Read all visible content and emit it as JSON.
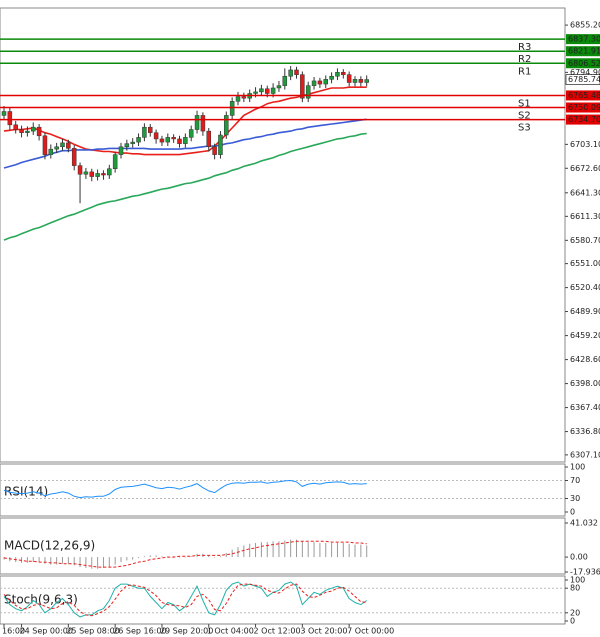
{
  "chart_data": [
    {
      "type": "candlestick",
      "categories": [
        "16:00",
        null,
        null,
        "24 Sep 00:00",
        null,
        null,
        null,
        null,
        null,
        null,
        null,
        "25 Sep 08:00",
        null,
        null,
        null,
        null,
        null,
        null,
        null,
        "26 Sep 16:00",
        null,
        null,
        null,
        null,
        null,
        null,
        null,
        "29 Sep 20:00",
        null,
        null,
        null,
        null,
        null,
        null,
        null,
        "1 Oct 04:00",
        null,
        null,
        null,
        null,
        null,
        null,
        null,
        "2 Oct 12:00",
        null,
        null,
        null,
        null,
        null,
        null,
        null,
        "3 Oct 20:00",
        null,
        null,
        null,
        null,
        null,
        null,
        null,
        "7 Oct 00:00",
        null,
        null,
        null
      ],
      "open": [
        6740,
        6745,
        6728,
        6722,
        6718,
        6720,
        6725,
        6714,
        6690,
        6697,
        6700,
        6705,
        6698,
        6676,
        6665,
        6668,
        6662,
        6666,
        6664,
        6672,
        6690,
        6700,
        6704,
        6706,
        6712,
        6725,
        6718,
        6710,
        6706,
        6712,
        6710,
        6704,
        6712,
        6722,
        6740,
        6720,
        6700,
        6690,
        6715,
        6740,
        6758,
        6764,
        6762,
        6768,
        6770,
        6774,
        6768,
        6775,
        6778,
        6790,
        6798,
        6792,
        6762,
        6778,
        6784,
        6780,
        6786,
        6790,
        6795,
        6792,
        6782,
        6786,
        6782
      ],
      "high": [
        6752,
        6750,
        6733,
        6727,
        6726,
        6731,
        6729,
        6718,
        6703,
        6705,
        6710,
        6709,
        6702,
        6680,
        6673,
        6672,
        6671,
        6670,
        6677,
        6694,
        6705,
        6709,
        6711,
        6717,
        6730,
        6729,
        6722,
        6714,
        6717,
        6716,
        6714,
        6717,
        6727,
        6746,
        6744,
        6724,
        6704,
        6720,
        6745,
        6763,
        6770,
        6769,
        6773,
        6776,
        6779,
        6778,
        6781,
        6784,
        6800,
        6803,
        6802,
        6796,
        6783,
        6789,
        6788,
        6791,
        6795,
        6800,
        6799,
        6796,
        6790,
        6790,
        6791
      ],
      "low": [
        6735,
        6722,
        6717,
        6712,
        6713,
        6715,
        6708,
        6684,
        6685,
        6692,
        6695,
        6693,
        6670,
        6628,
        6659,
        6656,
        6657,
        6658,
        6659,
        6667,
        6685,
        6695,
        6699,
        6701,
        6707,
        6713,
        6704,
        6701,
        6701,
        6705,
        6699,
        6699,
        6707,
        6717,
        6714,
        6694,
        6684,
        6685,
        6710,
        6735,
        6753,
        6757,
        6757,
        6763,
        6765,
        6763,
        6763,
        6770,
        6773,
        6785,
        6787,
        6757,
        6757,
        6773,
        6775,
        6775,
        6781,
        6785,
        6787,
        6777,
        6777,
        6777,
        6777
      ],
      "close": [
        6745,
        6728,
        6722,
        6718,
        6720,
        6725,
        6714,
        6690,
        6697,
        6700,
        6705,
        6698,
        6676,
        6665,
        6668,
        6662,
        6666,
        6664,
        6672,
        6690,
        6700,
        6704,
        6706,
        6712,
        6725,
        6718,
        6710,
        6706,
        6712,
        6710,
        6704,
        6712,
        6722,
        6740,
        6720,
        6700,
        6690,
        6715,
        6740,
        6758,
        6764,
        6762,
        6768,
        6770,
        6774,
        6768,
        6775,
        6778,
        6790,
        6798,
        6792,
        6762,
        6778,
        6784,
        6780,
        6786,
        6790,
        6795,
        6792,
        6782,
        6786,
        6782,
        6785.74
      ],
      "up_color": "#1f9a3c",
      "down_color": "#e01b1b",
      "current_price": 6785.74,
      "series": [
        {
          "color": "#e8201c",
          "values": [
            6720,
            6721,
            6722,
            6722,
            6723,
            6724,
            6721,
            6718,
            6716,
            6713,
            6710,
            6707,
            6703,
            6700,
            6697,
            6696,
            6695,
            6694,
            6694,
            6693,
            6692,
            6692,
            6691,
            6691,
            6690,
            6690,
            6690,
            6690,
            6690,
            6690,
            6690,
            6691,
            6692,
            6693,
            6694,
            6695,
            6701,
            6708,
            6716,
            6724,
            6732,
            6740,
            6744,
            6748,
            6751,
            6755,
            6757,
            6758,
            6760,
            6762,
            6763,
            6765,
            6767,
            6769,
            6771,
            6773,
            6775,
            6775,
            6775,
            6776,
            6776,
            6776,
            6776
          ]
        },
        {
          "color": "#3a5bd6",
          "values": [
            6673,
            6675,
            6677,
            6680,
            6682,
            6684,
            6686,
            6688,
            6691,
            6693,
            6695,
            6695,
            6696,
            6696,
            6696,
            6696,
            6697,
            6697,
            6698,
            6698,
            6698,
            6698,
            6698,
            6698,
            6698,
            6697,
            6697,
            6697,
            6697,
            6697,
            6697,
            6698,
            6698,
            6699,
            6700,
            6701,
            6701,
            6702,
            6704,
            6705,
            6707,
            6709,
            6710,
            6712,
            6713,
            6715,
            6716,
            6718,
            6719,
            6720,
            6722,
            6723,
            6725,
            6726,
            6727,
            6728,
            6729,
            6730,
            6731,
            6732,
            6733,
            6734,
            6735
          ]
        },
        {
          "color": "#2aa85a",
          "values": [
            6581,
            6584,
            6586,
            6589,
            6592,
            6595,
            6597,
            6600,
            6603,
            6606,
            6609,
            6612,
            6614,
            6617,
            6620,
            6623,
            6626,
            6628,
            6630,
            6631,
            6633,
            6635,
            6637,
            6638,
            6640,
            6642,
            6644,
            6646,
            6647,
            6649,
            6651,
            6653,
            6654,
            6656,
            6658,
            6660,
            6663,
            6665,
            6667,
            6670,
            6672,
            6675,
            6677,
            6679,
            6682,
            6684,
            6686,
            6689,
            6691,
            6694,
            6696,
            6698,
            6700,
            6702,
            6704,
            6706,
            6708,
            6710,
            6711,
            6713,
            6714,
            6716,
            6717
          ]
        }
      ],
      "levels": [
        {
          "name": "R3",
          "value": 6837.3,
          "label": "6837.30",
          "color": "#0a8a0a"
        },
        {
          "name": "R2",
          "value": 6821.91,
          "label": "6821.91",
          "color": "#0a8a0a"
        },
        {
          "name": "R1",
          "value": 6806.52,
          "label": "6806.52",
          "color": "#0a8a0a"
        },
        {
          "name": "S1",
          "value": 6765.48,
          "label": "6765.48",
          "color": "#e00000"
        },
        {
          "name": "S2",
          "value": 6750.09,
          "label": "6750.09",
          "color": "#e00000"
        },
        {
          "name": "S3",
          "value": 6734.7,
          "label": "6734.70",
          "color": "#e00000"
        }
      ],
      "ylim": [
        6298,
        6877
      ],
      "yticks": [
        {
          "value": 6855.2,
          "label": "6855.20"
        },
        {
          "value": 6794.9,
          "label": "6794.90"
        },
        {
          "value": 6703.1,
          "label": "6703.10"
        },
        {
          "value": 6672.6,
          "label": "6672.60"
        },
        {
          "value": 6641.3,
          "label": "6641.30"
        },
        {
          "value": 6611.3,
          "label": "6611.30"
        },
        {
          "value": 6580.7,
          "label": "6580.70"
        },
        {
          "value": 6551,
          "label": "6551.00"
        },
        {
          "value": 6520.4,
          "label": "6520.40"
        },
        {
          "value": 6489.9,
          "label": "6489.90"
        },
        {
          "value": 6459.2,
          "label": "6459.20"
        },
        {
          "value": 6428.6,
          "label": "6428.60"
        },
        {
          "value": 6398,
          "label": "6398.00"
        },
        {
          "value": 6367.4,
          "label": "6367.40"
        },
        {
          "value": 6336.8,
          "label": "6336.80"
        },
        {
          "value": 6307.1,
          "label": "6307.10"
        }
      ]
    },
    {
      "type": "line",
      "title": "RSI(14)",
      "series": [
        {
          "color": "#1e90ff",
          "values": [
            48,
            44,
            42,
            41,
            42,
            45,
            42,
            36,
            40,
            42,
            45,
            42,
            35,
            32,
            34,
            33,
            35,
            35,
            40,
            50,
            55,
            56,
            57,
            59,
            62,
            58,
            54,
            52,
            55,
            54,
            51,
            55,
            58,
            63,
            54,
            47,
            43,
            52,
            60,
            64,
            65,
            64,
            66,
            66,
            67,
            64,
            66,
            67,
            69,
            70,
            67,
            57,
            62,
            64,
            62,
            65,
            66,
            67,
            66,
            62,
            63,
            62,
            63
          ]
        }
      ],
      "ylim": [
        0,
        100
      ],
      "yticks": [
        100,
        70,
        30,
        0
      ]
    },
    {
      "type": "macd",
      "title": "MACD(12,26,9)",
      "histogram": {
        "color": "#9a9a9a",
        "values": [
          -3,
          -5,
          -6,
          -7,
          -7,
          -6,
          -6,
          -8,
          -9,
          -9,
          -8,
          -8,
          -10,
          -12,
          -13,
          -14,
          -14,
          -13,
          -12,
          -9,
          -6,
          -4,
          -3,
          -1,
          1,
          2,
          2,
          1,
          1,
          1,
          0,
          0,
          1,
          4,
          4,
          2,
          0,
          1,
          5,
          9,
          12,
          14,
          16,
          17,
          18,
          18,
          19,
          19,
          20,
          21,
          21,
          19,
          18,
          18,
          17,
          17,
          17,
          17,
          17,
          16,
          15,
          15,
          14
        ]
      },
      "signal": {
        "color": "#e8201c",
        "dashed": true,
        "values": [
          -1,
          -2,
          -3,
          -4,
          -5,
          -5,
          -6,
          -6,
          -7,
          -7,
          -8,
          -8,
          -8,
          -9,
          -10,
          -11,
          -12,
          -12,
          -12,
          -12,
          -11,
          -10,
          -8,
          -6,
          -5,
          -3,
          -2,
          -1,
          0,
          0,
          1,
          1,
          1,
          2,
          2,
          2,
          2,
          2,
          3,
          4,
          6,
          8,
          10,
          11,
          13,
          14,
          15,
          16,
          17,
          18,
          19,
          19,
          19,
          19,
          19,
          19,
          18,
          18,
          18,
          18,
          17,
          17,
          16
        ]
      },
      "ylim": [
        -17.936,
        41.032
      ],
      "yticks": [
        41.032,
        {
          "value": 0,
          "label": "0.00"
        },
        -17.936
      ]
    },
    {
      "type": "stochastic",
      "title": "Stoch(9,6,3)",
      "series": [
        {
          "color": "#20b2aa",
          "values": [
            60,
            40,
            30,
            25,
            35,
            50,
            40,
            20,
            30,
            45,
            55,
            40,
            20,
            10,
            15,
            15,
            25,
            30,
            50,
            80,
            90,
            90,
            85,
            80,
            80,
            60,
            45,
            30,
            45,
            40,
            25,
            35,
            60,
            85,
            50,
            20,
            15,
            40,
            75,
            90,
            95,
            85,
            90,
            85,
            80,
            60,
            70,
            75,
            90,
            95,
            85,
            40,
            55,
            70,
            65,
            75,
            80,
            85,
            80,
            55,
            45,
            40,
            50
          ]
        },
        {
          "color": "#e8201c",
          "dashed": true,
          "values": [
            65,
            50,
            38,
            30,
            30,
            38,
            42,
            36,
            30,
            32,
            43,
            47,
            38,
            23,
            15,
            13,
            18,
            24,
            35,
            53,
            73,
            86,
            88,
            85,
            82,
            73,
            62,
            45,
            40,
            38,
            37,
            33,
            40,
            60,
            65,
            52,
            28,
            25,
            43,
            68,
            87,
            90,
            90,
            87,
            85,
            75,
            70,
            68,
            78,
            87,
            90,
            73,
            60,
            57,
            63,
            70,
            73,
            80,
            82,
            73,
            60,
            47,
            45
          ]
        }
      ],
      "ylim": [
        0,
        100
      ],
      "yticks": [
        100,
        80,
        20,
        0
      ]
    }
  ]
}
